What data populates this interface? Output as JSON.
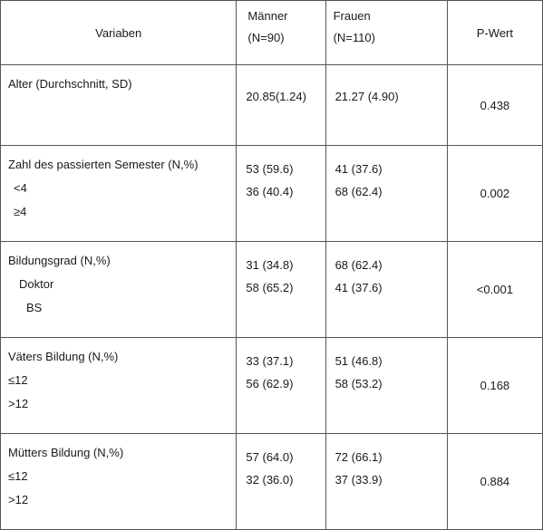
{
  "header": {
    "variable": "Variaben",
    "men_label": "Männer",
    "men_n": "(N=90)",
    "women_label": "Frauen",
    "women_n": "(N=110)",
    "pvalue": "P-Wert"
  },
  "rows": [
    {
      "variable": "Alter (Durchschnitt, SD)",
      "men": "20.85(1.24)",
      "women": "21.27 (4.90)",
      "p": "0.438"
    },
    {
      "variable": "Zahl des passierten Semester (N,%)",
      "subs": [
        "<4",
        "≥4"
      ],
      "men": [
        "53 (59.6)",
        "36 (40.4)"
      ],
      "women": [
        "41 (37.6)",
        "68 (62.4)"
      ],
      "p": "0.002"
    },
    {
      "variable": "Bildungsgrad (N,%)",
      "subs": [
        "Doktor",
        "BS"
      ],
      "men": [
        "31 (34.8)",
        "58 (65.2)"
      ],
      "women": [
        "68 (62.4)",
        "41 (37.6)"
      ],
      "p": "<0.001"
    },
    {
      "variable": "Väters Bildung (N,%)",
      "subs": [
        "≤12",
        ">12"
      ],
      "men": [
        "33 (37.1)",
        "56 (62.9)"
      ],
      "women": [
        "51 (46.8)",
        "58 (53.2)"
      ],
      "p": "0.168"
    },
    {
      "variable": "Mütters Bildung (N,%)",
      "subs": [
        "≤12",
        ">12"
      ],
      "men": [
        "57 (64.0)",
        "32 (36.0)"
      ],
      "women": [
        "72 (66.1)",
        "37 (33.9)"
      ],
      "p": "0.884"
    }
  ]
}
